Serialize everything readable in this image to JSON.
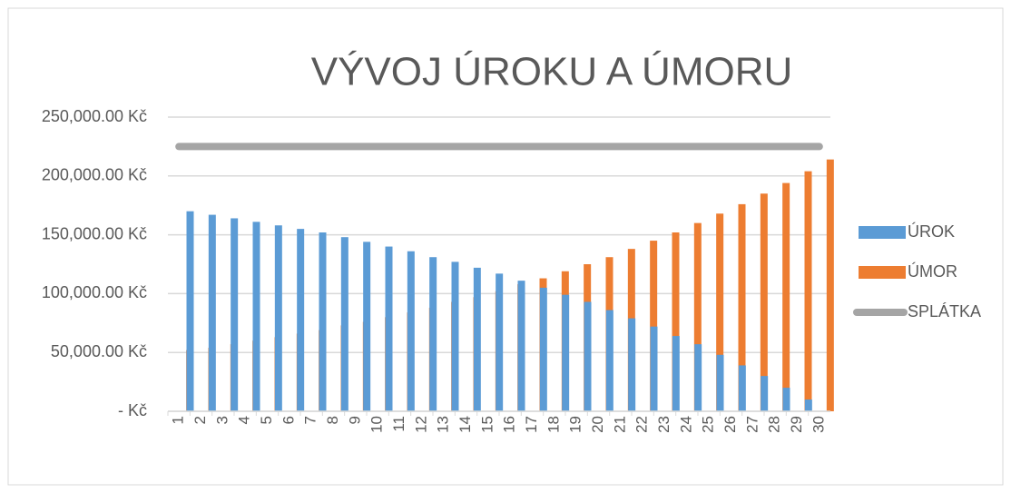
{
  "chart_data": {
    "type": "bar",
    "title": "VÝVOJ ÚROKU A ÚMORU",
    "categories": [
      "1",
      "2",
      "3",
      "4",
      "5",
      "6",
      "7",
      "8",
      "9",
      "10",
      "11",
      "12",
      "13",
      "14",
      "15",
      "16",
      "17",
      "18",
      "19",
      "20",
      "21",
      "22",
      "23",
      "24",
      "25",
      "26",
      "27",
      "28",
      "29",
      "30"
    ],
    "series": [
      {
        "name": "ÚROK",
        "color": "#5b9bd5",
        "values": [
          null,
          170000,
          167000,
          164000,
          161000,
          158000,
          155000,
          152000,
          148000,
          144000,
          140000,
          136000,
          131000,
          127000,
          122000,
          117000,
          111000,
          105000,
          99000,
          93000,
          86000,
          79000,
          72000,
          64000,
          57000,
          48000,
          39000,
          30000,
          20000,
          10000
        ]
      },
      {
        "name": "ÚMOR",
        "color": "#ed7d31",
        "values": [
          52000,
          54000,
          57000,
          60000,
          63000,
          66000,
          69000,
          73000,
          76000,
          80000,
          84000,
          88000,
          93000,
          97000,
          102000,
          108000,
          113000,
          119000,
          125000,
          131000,
          138000,
          145000,
          152000,
          160000,
          168000,
          176000,
          185000,
          194000,
          204000,
          214000
        ]
      },
      {
        "name": "SPLÁTKA",
        "type": "line",
        "color": "#a5a5a5",
        "values": [
          225000,
          225000,
          225000,
          225000,
          225000,
          225000,
          225000,
          225000,
          225000,
          225000,
          225000,
          225000,
          225000,
          225000,
          225000,
          225000,
          225000,
          225000,
          225000,
          225000,
          225000,
          225000,
          225000,
          225000,
          225000,
          225000,
          225000,
          225000,
          225000,
          225000
        ]
      }
    ],
    "ylim": [
      0,
      250000
    ],
    "yticks": [
      {
        "value": 0,
        "label": "-   Kč"
      },
      {
        "value": 50000,
        "label": "50,000.00 Kč"
      },
      {
        "value": 100000,
        "label": "100,000.00 Kč"
      },
      {
        "value": 150000,
        "label": "150,000.00 Kč"
      },
      {
        "value": 200000,
        "label": "200,000.00 Kč"
      },
      {
        "value": 250000,
        "label": "250,000.00 Kč"
      }
    ],
    "grid": true,
    "legend": "right"
  }
}
